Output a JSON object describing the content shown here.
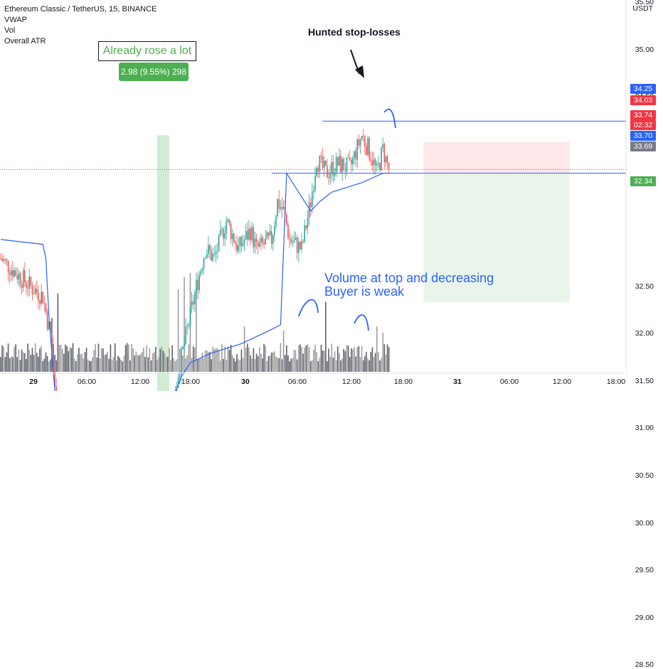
{
  "legend": {
    "symbol": "Ethereum Classic / TetherUS, 15, BINANCE",
    "line2": "VWAP",
    "line3": "Vol",
    "line4": "Overall ATR"
  },
  "axis_unit": "USDT",
  "price_axis_labels": [
    "35.50",
    "35.00",
    "34.50",
    "32.50",
    "32.00",
    "31.50",
    "31.00",
    "30.50",
    "30.00",
    "29.50",
    "29.00",
    "28.50"
  ],
  "price_tags": [
    {
      "text": "34.25",
      "color": "#2962ff"
    },
    {
      "text": "34.03",
      "color": "#f23645"
    },
    {
      "text": "33.74",
      "color": "#f23645"
    },
    {
      "text": "02:32",
      "color": "#f23645"
    },
    {
      "text": "33.70",
      "color": "#2962ff"
    },
    {
      "text": "33.69",
      "color": "#787b86"
    },
    {
      "text": "32.34",
      "color": "#4caf50"
    }
  ],
  "time_axis_labels": [
    "29",
    "06:00",
    "12:00",
    "18:00",
    "30",
    "06:00",
    "12:00",
    "18:00",
    "31",
    "06:00",
    "12:00",
    "18:00"
  ],
  "annotations": {
    "rose_box": "Already rose a lot",
    "rose_stat": "2.98 (9.55%) 298",
    "hunted": "Hunted stop-losses",
    "volume_line1": "Volume at top and decreasing",
    "volume_line2": "Buyer is weak"
  },
  "chart_data": {
    "type": "candlestick",
    "title": "Ethereum Classic / TetherUS, 15, BINANCE",
    "indicators": [
      "VWAP",
      "Vol",
      "Overall ATR"
    ],
    "y_unit": "USDT",
    "ylim": [
      28.3,
      35.8
    ],
    "x_start": "28 23:00",
    "bar_interval_minutes": 15,
    "colors": {
      "up": "#26a69a",
      "down": "#ef5350",
      "vwap": "#2962ff",
      "vol_up": "#9e9e9e",
      "vol_down": "#5d606b"
    },
    "anchors": [
      [
        0,
        32.8
      ],
      [
        10,
        32.65
      ],
      [
        20,
        32.5
      ],
      [
        28,
        32.4
      ],
      [
        34,
        31.9
      ],
      [
        38,
        30.9
      ],
      [
        42,
        30.95
      ],
      [
        48,
        30.8
      ],
      [
        52,
        31.0
      ],
      [
        58,
        31.2
      ],
      [
        64,
        31.1
      ],
      [
        70,
        31.05
      ],
      [
        78,
        31.2
      ],
      [
        86,
        31.0
      ],
      [
        94,
        31.1
      ],
      [
        100,
        31.0
      ],
      [
        110,
        31.2
      ],
      [
        114,
        31.2
      ],
      [
        118,
        31.6
      ],
      [
        122,
        31.9
      ],
      [
        126,
        32.2
      ],
      [
        130,
        32.5
      ],
      [
        136,
        32.9
      ],
      [
        142,
        32.8
      ],
      [
        150,
        33.2
      ],
      [
        158,
        32.9
      ],
      [
        166,
        33.1
      ],
      [
        170,
        32.9
      ],
      [
        180,
        33.0
      ],
      [
        184,
        33.4
      ],
      [
        188,
        33.3
      ],
      [
        192,
        33.0
      ],
      [
        200,
        32.9
      ],
      [
        206,
        33.4
      ],
      [
        210,
        33.85
      ],
      [
        216,
        33.7
      ],
      [
        224,
        33.8
      ],
      [
        232,
        33.75
      ],
      [
        240,
        34.1
      ],
      [
        246,
        33.9
      ],
      [
        250,
        33.7
      ],
      [
        254,
        33.95
      ],
      [
        258,
        33.74
      ]
    ],
    "vwap": [
      [
        0,
        33.0
      ],
      [
        28,
        32.95
      ],
      [
        30,
        32.8
      ],
      [
        32,
        32.2
      ],
      [
        36,
        31.4
      ],
      [
        40,
        31.05
      ],
      [
        48,
        30.85
      ],
      [
        60,
        30.85
      ],
      [
        80,
        30.9
      ],
      [
        100,
        31.0
      ],
      [
        110,
        31.1
      ],
      [
        114,
        31.3
      ],
      [
        120,
        31.55
      ],
      [
        126,
        31.7
      ],
      [
        140,
        31.8
      ],
      [
        160,
        31.9
      ],
      [
        180,
        32.05
      ],
      [
        186,
        32.1
      ],
      [
        190,
        33.7
      ],
      [
        196,
        33.55
      ],
      [
        206,
        33.3
      ],
      [
        212,
        33.4
      ],
      [
        220,
        33.5
      ],
      [
        240,
        33.6
      ],
      [
        254,
        33.7
      ],
      [
        258,
        33.7
      ]
    ],
    "volume_spikes": [
      {
        "bar": 38,
        "value": 1.9
      },
      {
        "bar": 34,
        "value": 1.3
      },
      {
        "bar": 118,
        "value": 2.0
      },
      {
        "bar": 122,
        "value": 2.3
      },
      {
        "bar": 126,
        "value": 2.4
      },
      {
        "bar": 130,
        "value": 2.0
      },
      {
        "bar": 162,
        "value": 1.1
      },
      {
        "bar": 188,
        "value": 1.0
      },
      {
        "bar": 216,
        "value": 1.7
      },
      {
        "bar": 250,
        "value": 1.1
      },
      {
        "bar": 254,
        "value": 0.95
      }
    ],
    "horizontal_levels": [
      {
        "price": 34.25,
        "color": "#2962ff",
        "from_bar": 214,
        "to_bar": 460
      },
      {
        "price": 33.7,
        "color": "#2962ff",
        "from_bar": 180,
        "to_bar": 460
      }
    ],
    "last_price": 33.74,
    "position": {
      "entry": 33.7,
      "stop": 34.03,
      "target": 32.34,
      "from_bar": 281,
      "to_bar": 378
    },
    "measure_range": {
      "from_bar": 104,
      "to_bar": 112,
      "low": 31.1,
      "high": 34.1
    }
  }
}
